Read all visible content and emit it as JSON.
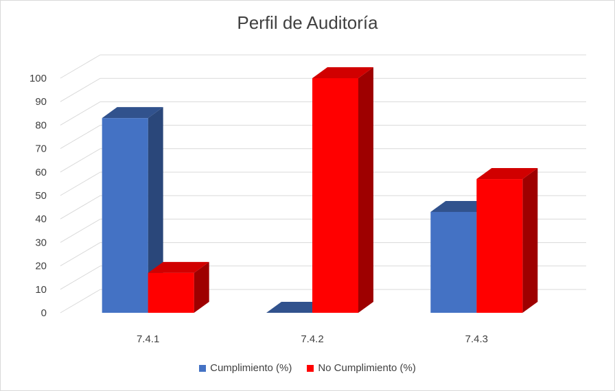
{
  "chart_data": {
    "type": "bar",
    "title": "Perfil de Auditoría",
    "categories": [
      "7.4.1",
      "7.4.2",
      "7.4.3"
    ],
    "series": [
      {
        "name": "Cumplimiento (%)",
        "values": [
          83,
          0,
          43
        ],
        "color": "#4472c4"
      },
      {
        "name": "No Cumplimiento (%)",
        "values": [
          17,
          100,
          57
        ],
        "color": "#ff0000"
      }
    ],
    "ylim": [
      0,
      100
    ],
    "yticks": [
      "0",
      "10",
      "20",
      "30",
      "40",
      "50",
      "60",
      "70",
      "80",
      "90",
      "100"
    ],
    "grid": true,
    "legend_position": "bottom",
    "style": "3d-column"
  }
}
